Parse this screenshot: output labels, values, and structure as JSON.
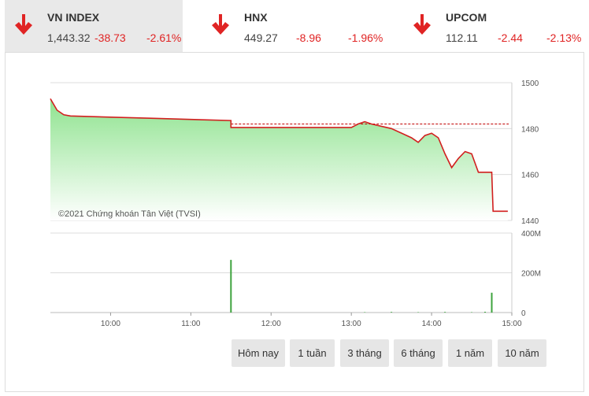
{
  "tickers": [
    {
      "name": "VN INDEX",
      "price": "1,443.32",
      "change": "-38.73",
      "pct": "-2.61%",
      "direction": "down",
      "icon": "down-arrow-icon"
    },
    {
      "name": "HNX",
      "price": "449.27",
      "change": "-8.96",
      "pct": "-1.96%",
      "direction": "down",
      "icon": "down-arrow-icon"
    },
    {
      "name": "UPCOM",
      "price": "112.11",
      "change": "-2.44",
      "pct": "-2.13%",
      "direction": "down",
      "icon": "down-arrow-icon"
    }
  ],
  "colors": {
    "down": "#e02424",
    "line": "#d21f1f",
    "area_top": "#8fe38f",
    "area_bottom": "#ffffff",
    "volume": "#3ea33e",
    "ref_line": "#c00000"
  },
  "chart_data": {
    "type": "line",
    "watermark": "©2021 Chứng khoán Tân Việt (TVSI)",
    "reference_value": 1482,
    "x_ticks": [
      "10:00",
      "11:00",
      "12:00",
      "13:00",
      "14:00",
      "15:00"
    ],
    "price_axis": {
      "ticks": [
        "1500",
        "1480",
        "1460",
        "1440"
      ],
      "range": [
        1440,
        1500
      ]
    },
    "volume_axis": {
      "ticks": [
        "400M",
        "200M",
        "0"
      ],
      "range": [
        0,
        400
      ]
    },
    "price_series": {
      "x": [
        "9:15",
        "9:20",
        "9:25",
        "9:30",
        "10:00",
        "10:30",
        "11:00",
        "11:30",
        "11:30",
        "12:00",
        "12:30",
        "13:00",
        "13:05",
        "13:10",
        "13:15",
        "13:30",
        "13:45",
        "13:50",
        "13:55",
        "14:00",
        "14:05",
        "14:10",
        "14:15",
        "14:20",
        "14:25",
        "14:30",
        "14:35",
        "14:45",
        "14:46",
        "14:57"
      ],
      "y": [
        1493,
        1488,
        1486,
        1485.5,
        1485,
        1484.5,
        1484,
        1483.5,
        1480.5,
        1480.5,
        1480.5,
        1480.5,
        1482,
        1483,
        1482,
        1480,
        1476,
        1474,
        1477,
        1478,
        1476,
        1469,
        1463,
        1467,
        1470,
        1469,
        1461,
        1461,
        1444,
        1444
      ]
    },
    "volume_series": {
      "x": [
        "11:30",
        "13:10",
        "13:30",
        "13:50",
        "14:10",
        "14:30",
        "14:40",
        "14:45"
      ],
      "y": [
        265,
        2,
        3,
        2,
        3,
        2,
        4,
        100
      ]
    }
  },
  "range_buttons": [
    "Hôm nay",
    "1 tuần",
    "3 tháng",
    "6 tháng",
    "1 năm",
    "10 năm"
  ]
}
